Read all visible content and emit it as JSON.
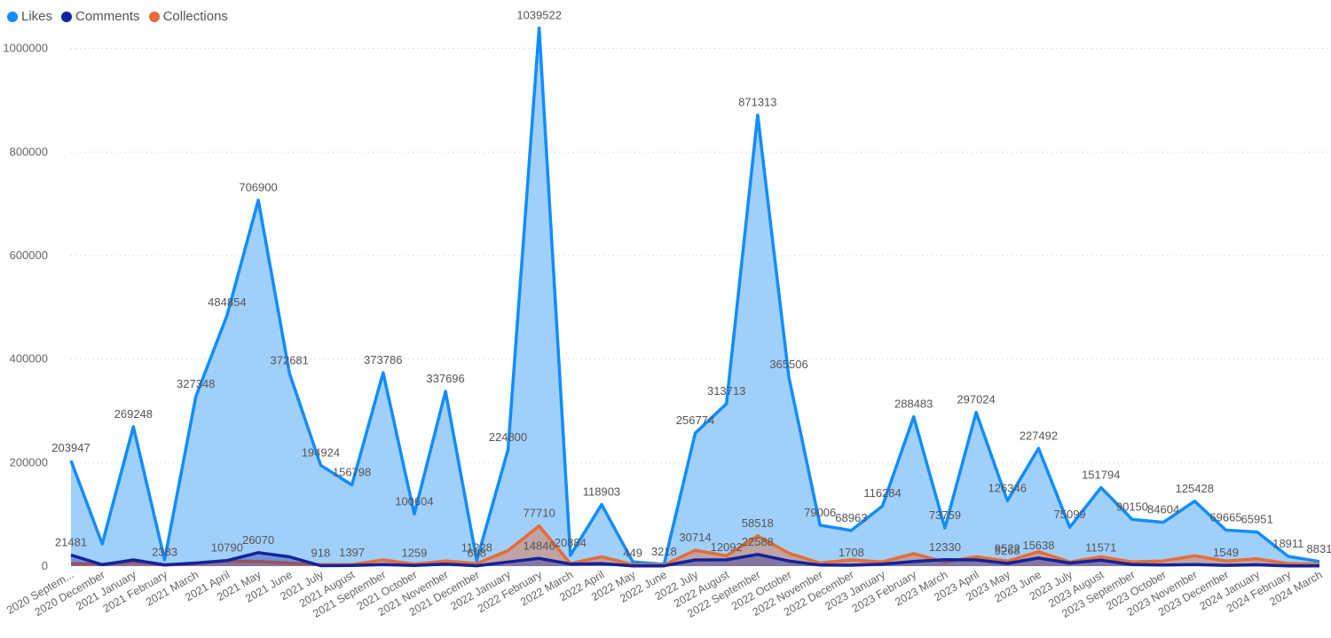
{
  "chart_data": {
    "type": "area",
    "title": "",
    "xlabel": "",
    "ylabel": "",
    "ylim": [
      0,
      1080000
    ],
    "y_ticks": [
      0,
      200000,
      400000,
      600000,
      800000,
      1000000
    ],
    "y_tick_labels": [
      "0",
      "200000",
      "400000",
      "600000",
      "800000",
      "1000000"
    ],
    "grid": true,
    "legend_position": "top-left",
    "categories": [
      "2020 September",
      "2020 December",
      "2021 January",
      "2021 February",
      "2021 March",
      "2021 April",
      "2021 May",
      "2021 June",
      "2021 July",
      "2021 August",
      "2021 September",
      "2021 October",
      "2021 November",
      "2021 December",
      "2022 January",
      "2022 February",
      "2022 March",
      "2022 April",
      "2022 May",
      "2022 June",
      "2022 July",
      "2022 August",
      "2022 September",
      "2022 October",
      "2022 November",
      "2022 December",
      "2023 January",
      "2023 February",
      "2023 March",
      "2023 April",
      "2023 May",
      "2023 June",
      "2023 July",
      "2023 August",
      "2023 September",
      "2023 October",
      "2023 November",
      "2023 December",
      "2024 January",
      "2024 February",
      "2024 March"
    ],
    "category_labels": [
      "2020 Septem...",
      "2020 December",
      "2021 January",
      "2021 February",
      "2021 March",
      "2021 April",
      "2021 May",
      "2021 June",
      "2021 July",
      "2021 August",
      "2021 September",
      "2021 October",
      "2021 November",
      "2021 December",
      "2022 January",
      "2022 February",
      "2022 March",
      "2022 April",
      "2022 May",
      "2022 June",
      "2022 July",
      "2022 August",
      "2022 September",
      "2022 October",
      "2022 November",
      "2022 December",
      "2023 January",
      "2023 February",
      "2023 March",
      "2023 April",
      "2023 May",
      "2023 June",
      "2023 July",
      "2023 August",
      "2023 September",
      "2023 October",
      "2023 November",
      "2023 December",
      "2024 January",
      "2024 February",
      "2024 March"
    ],
    "series": [
      {
        "name": "Likes",
        "color": "#118DFF",
        "fill": "#A0CFFA",
        "values": [
          203947,
          42849,
          269248,
          12383,
          327348,
          484854,
          706900,
          372681,
          194924,
          156798,
          373786,
          100604,
          337696,
          11228,
          224800,
          1039522,
          20884,
          118903,
          8449,
          3218,
          256774,
          313713,
          871313,
          365506,
          79006,
          68963,
          116284,
          288483,
          73759,
          297024,
          126346,
          227492,
          75099,
          151794,
          90150,
          84604,
          125428,
          69665,
          65951,
          18911,
          8831
        ],
        "labels": [
          "203947",
          "",
          "269248",
          "",
          "327348",
          "484854",
          "706900",
          "372681",
          "194924",
          "156798",
          "373786",
          "100604",
          "337696",
          "11228",
          "224800",
          "1039522",
          "20884",
          "118903",
          "",
          "3218",
          "256774",
          "313713",
          "871313",
          "365506",
          "79006",
          "68963",
          "116284",
          "288483",
          "73759",
          "297024",
          "126346",
          "227492",
          "75099",
          "151794",
          "90150",
          "84604",
          "125428",
          "69665",
          "65951",
          "18911",
          "8831"
        ]
      },
      {
        "name": "Comments",
        "color": "#12239E",
        "fill": "#12239E",
        "values": [
          21481,
          2800,
          12000,
          2383,
          6000,
          10790,
          26070,
          18000,
          918,
          1397,
          3000,
          1259,
          4000,
          698,
          8000,
          14846,
          4000,
          5000,
          449,
          500,
          12000,
          12092,
          22588,
          10000,
          2000,
          1708,
          4000,
          9000,
          12330,
          12000,
          5268,
          15638,
          6000,
          11571,
          3000,
          2000,
          3000,
          1549,
          2500,
          500,
          300
        ],
        "labels": [
          "21481",
          "",
          "",
          "2383",
          "",
          "10790",
          "26070",
          "",
          "918",
          "1397",
          "",
          "1259",
          "",
          "698",
          "",
          "14846",
          "",
          "",
          "449",
          "",
          "",
          "12092",
          "22588",
          "",
          "",
          "1708",
          "",
          "",
          "12330",
          "",
          "5268",
          "15638",
          "",
          "11571",
          "",
          "",
          "",
          "1549",
          "",
          "",
          ""
        ]
      },
      {
        "name": "Collections",
        "color": "#E66C37",
        "fill": "#E66C37",
        "values": [
          5000,
          4000,
          8000,
          2000,
          5000,
          10000,
          9000,
          6000,
          3000,
          3000,
          12000,
          4000,
          10000,
          5000,
          30000,
          77710,
          5000,
          18000,
          3000,
          2000,
          30714,
          20000,
          58518,
          25000,
          6000,
          12000,
          8000,
          24000,
          8000,
          18000,
          9522,
          28000,
          8000,
          18000,
          8000,
          10000,
          20000,
          10000,
          14000,
          5000,
          4000
        ],
        "labels": [
          "",
          "",
          "",
          "",
          "",
          "",
          "",
          "",
          "",
          "",
          "",
          "",
          "",
          "",
          "",
          "77710",
          "",
          "",
          "",
          "",
          "30714",
          "",
          "58518",
          "",
          "",
          "",
          "",
          "",
          "",
          "",
          "9522",
          "",
          "",
          "",
          "",
          "",
          "",
          "",
          "",
          "",
          ""
        ]
      }
    ]
  }
}
